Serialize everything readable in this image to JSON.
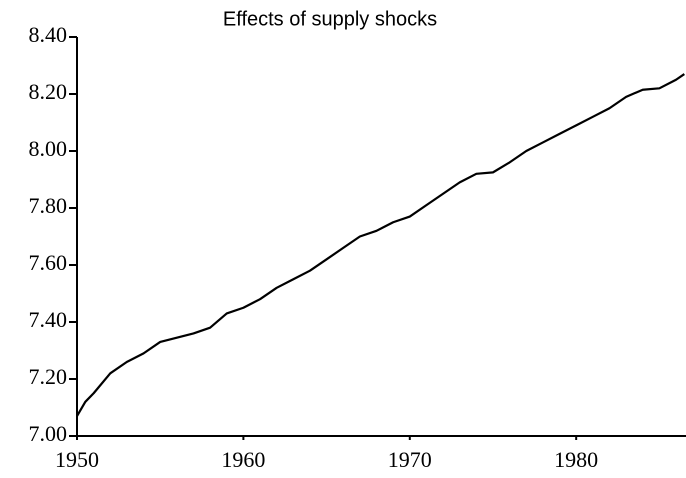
{
  "chart_data": {
    "type": "line",
    "title": "Effects of supply shocks",
    "x": [
      1950,
      1950.5,
      1951,
      1952,
      1953,
      1954,
      1955,
      1956,
      1957,
      1958,
      1959,
      1960,
      1961,
      1962,
      1963,
      1964,
      1965,
      1966,
      1967,
      1968,
      1969,
      1970,
      1971,
      1972,
      1973,
      1974,
      1975,
      1976,
      1977,
      1978,
      1979,
      1980,
      1981,
      1982,
      1983,
      1984,
      1985,
      1986,
      1986.5
    ],
    "series": [
      {
        "color": "#000000",
        "values": [
          7.07,
          7.12,
          7.15,
          7.22,
          7.26,
          7.29,
          7.33,
          7.345,
          7.36,
          7.38,
          7.43,
          7.45,
          7.48,
          7.52,
          7.55,
          7.58,
          7.62,
          7.66,
          7.7,
          7.72,
          7.75,
          7.77,
          7.81,
          7.85,
          7.89,
          7.92,
          7.925,
          7.96,
          8.0,
          8.03,
          8.06,
          8.09,
          8.12,
          8.15,
          8.19,
          8.215,
          8.22,
          8.25,
          8.27
        ]
      }
    ],
    "xlim": [
      1950,
      1986.6
    ],
    "xticks": [
      1950,
      1960,
      1970,
      1980
    ],
    "ylim": [
      7.0,
      8.4
    ],
    "yticks": [
      {
        "value": 7.0,
        "label": "7.00"
      },
      {
        "value": 7.2,
        "label": "7.20"
      },
      {
        "value": 7.4,
        "label": "7.40"
      },
      {
        "value": 7.6,
        "label": "7.60"
      },
      {
        "value": 7.8,
        "label": "7.80"
      },
      {
        "value": 8.0,
        "label": "8.00"
      },
      {
        "value": 8.2,
        "label": "8.20"
      },
      {
        "value": 8.4,
        "label": "8.40"
      }
    ],
    "grid": false
  }
}
